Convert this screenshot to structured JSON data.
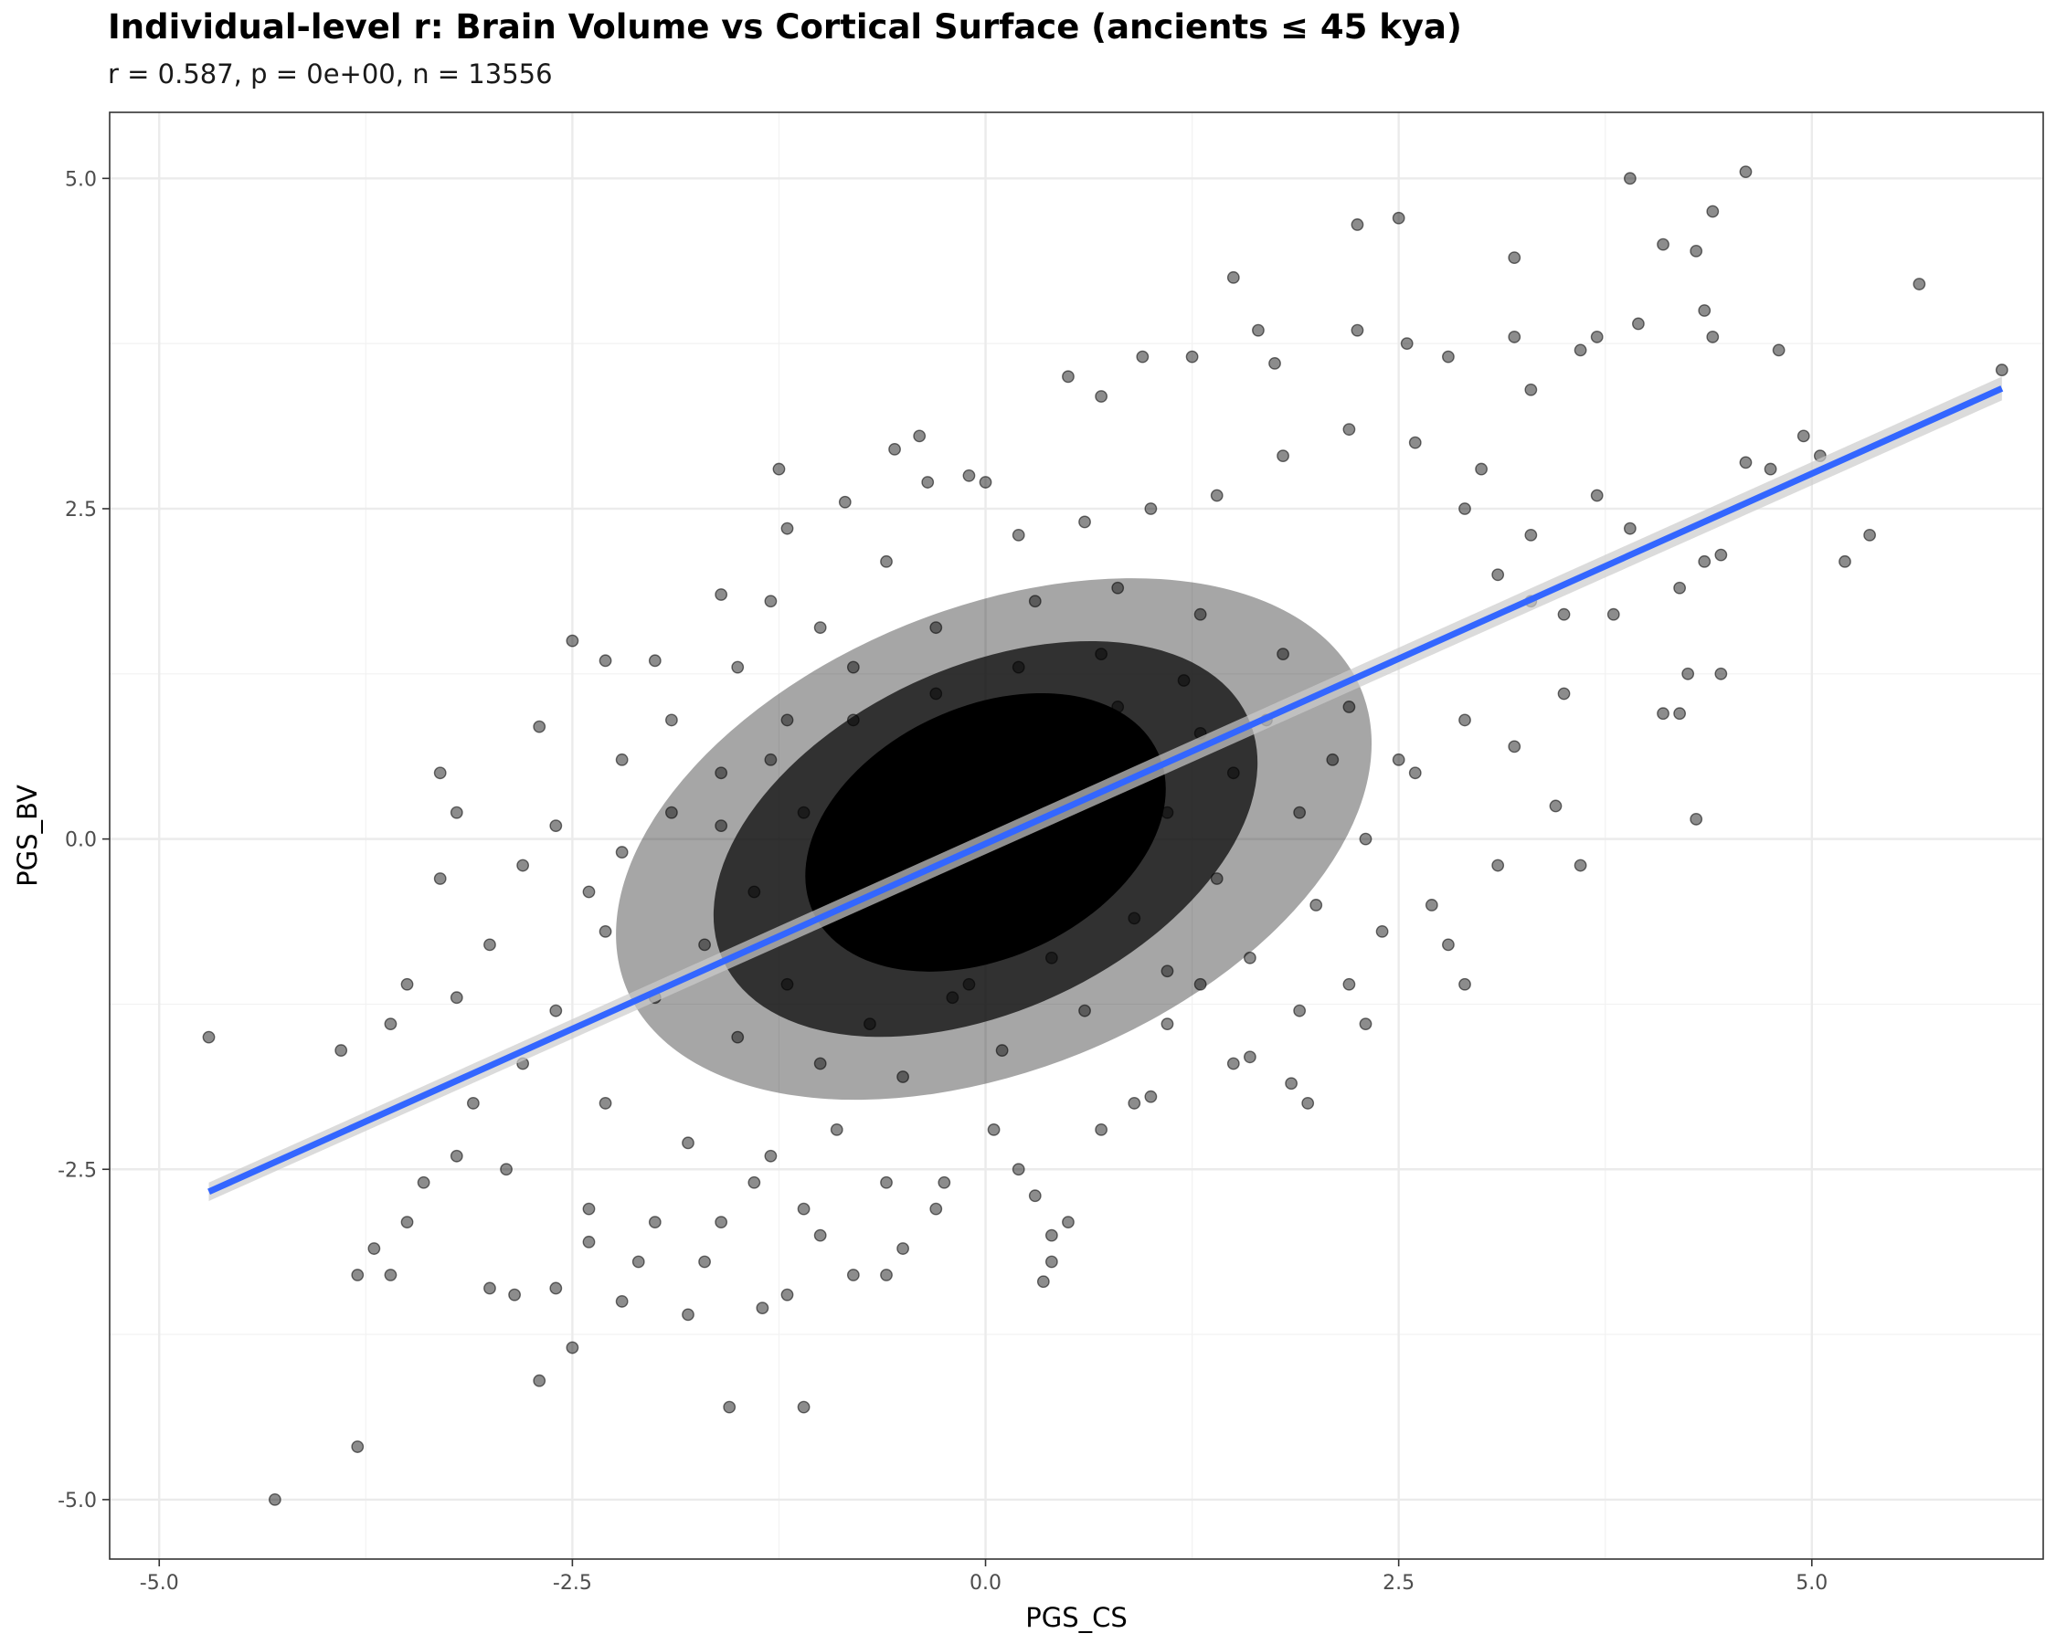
{
  "chart_data": {
    "type": "scatter",
    "title": "Individual-level r: Brain Volume vs Cortical Surface (ancients ≤ 45 kya)",
    "subtitle": "r = 0.587, p = 0e+00, n = 13556",
    "xlabel": "PGS_CS",
    "ylabel": "PGS_BV",
    "xlim": [
      -5.3,
      6.4
    ],
    "ylim": [
      -5.45,
      5.5
    ],
    "xticks": [
      -5.0,
      -2.5,
      0.0,
      2.5,
      5.0
    ],
    "yticks": [
      -5.0,
      -2.5,
      0.0,
      2.5,
      5.0
    ],
    "xtick_labels": [
      "-5.0",
      "-2.5",
      "0.0",
      "2.5",
      "5.0"
    ],
    "ytick_labels": [
      "-5.0",
      "-2.5",
      "0.0",
      "2.5",
      "5.0"
    ],
    "grid": true,
    "stats": {
      "r": 0.587,
      "p": 0,
      "n": 13556
    },
    "point_color": "#000000",
    "point_alpha": 0.45,
    "line_color": "#3366ff",
    "band_color": "#cccccc",
    "fit_line": {
      "x": [
        -4.7,
        6.15
      ],
      "y": [
        -2.67,
        3.41
      ]
    },
    "points": [
      [
        -4.7,
        -1.5
      ],
      [
        -4.3,
        -5.0
      ],
      [
        -3.8,
        -4.6
      ],
      [
        -3.9,
        -1.6
      ],
      [
        -3.7,
        -3.1
      ],
      [
        -3.6,
        -3.3
      ],
      [
        -3.8,
        -3.3
      ],
      [
        -3.5,
        -1.1
      ],
      [
        -3.3,
        -0.3
      ],
      [
        -3.2,
        0.2
      ],
      [
        -3.3,
        0.5
      ],
      [
        -3.4,
        -2.6
      ],
      [
        -3.5,
        -2.9
      ],
      [
        -3.6,
        -1.4
      ],
      [
        -3.1,
        -2.0
      ],
      [
        -3.0,
        -3.4
      ],
      [
        -2.7,
        -4.1
      ],
      [
        -2.7,
        0.85
      ],
      [
        -2.6,
        -3.4
      ],
      [
        -2.5,
        -3.85
      ],
      [
        -2.5,
        1.5
      ],
      [
        -2.3,
        1.35
      ],
      [
        -2.0,
        1.35
      ],
      [
        -1.6,
        1.85
      ],
      [
        -1.3,
        1.8
      ],
      [
        -1.25,
        2.8
      ],
      [
        -1.2,
        2.35
      ],
      [
        -0.85,
        2.55
      ],
      [
        -0.55,
        2.95
      ],
      [
        -0.4,
        3.05
      ],
      [
        -0.35,
        2.7
      ],
      [
        -0.1,
        2.75
      ],
      [
        0.0,
        2.7
      ],
      [
        0.5,
        3.5
      ],
      [
        0.7,
        3.35
      ],
      [
        0.95,
        3.65
      ],
      [
        1.25,
        3.65
      ],
      [
        1.5,
        4.25
      ],
      [
        1.65,
        3.85
      ],
      [
        1.75,
        3.6
      ],
      [
        2.25,
        4.65
      ],
      [
        2.5,
        4.7
      ],
      [
        2.25,
        3.85
      ],
      [
        2.55,
        3.75
      ],
      [
        2.8,
        3.65
      ],
      [
        3.2,
        4.4
      ],
      [
        3.2,
        3.8
      ],
      [
        3.3,
        3.4
      ],
      [
        3.6,
        3.7
      ],
      [
        3.7,
        3.8
      ],
      [
        3.9,
        5.0
      ],
      [
        3.95,
        3.9
      ],
      [
        4.1,
        4.5
      ],
      [
        4.3,
        4.45
      ],
      [
        4.35,
        4.0
      ],
      [
        4.4,
        4.75
      ],
      [
        4.4,
        3.8
      ],
      [
        4.6,
        5.05
      ],
      [
        4.8,
        3.7
      ],
      [
        5.65,
        4.2
      ],
      [
        6.15,
        3.55
      ],
      [
        4.95,
        3.05
      ],
      [
        5.05,
        2.9
      ],
      [
        4.6,
        2.85
      ],
      [
        4.75,
        2.8
      ],
      [
        5.2,
        2.1
      ],
      [
        5.35,
        2.3
      ],
      [
        4.2,
        1.9
      ],
      [
        4.45,
        2.15
      ],
      [
        4.35,
        2.1
      ],
      [
        4.45,
        1.25
      ],
      [
        4.25,
        1.25
      ],
      [
        4.1,
        0.95
      ],
      [
        4.2,
        0.95
      ],
      [
        4.3,
        0.15
      ],
      [
        3.6,
        -0.2
      ],
      [
        3.45,
        0.25
      ],
      [
        2.9,
        -1.1
      ],
      [
        1.95,
        -2.0
      ],
      [
        1.85,
        -1.85
      ],
      [
        1.6,
        -1.65
      ],
      [
        1.0,
        -1.95
      ],
      [
        0.5,
        -2.9
      ],
      [
        0.4,
        -3.0
      ],
      [
        0.4,
        -3.2
      ],
      [
        0.35,
        -3.35
      ],
      [
        -0.8,
        -3.3
      ],
      [
        -0.6,
        -3.3
      ],
      [
        -1.1,
        -4.3
      ],
      [
        -1.55,
        -4.3
      ],
      [
        -1.2,
        -3.45
      ],
      [
        -1.35,
        -3.55
      ],
      [
        -1.8,
        -3.6
      ],
      [
        -2.2,
        -3.5
      ],
      [
        -2.4,
        -3.05
      ],
      [
        -2.85,
        -3.45
      ],
      [
        -0.1,
        -1.1
      ],
      [
        0.05,
        -2.2
      ],
      [
        1.3,
        -1.1
      ],
      [
        -0.25,
        -2.6
      ],
      [
        3.0,
        2.8
      ],
      [
        3.1,
        2.0
      ],
      [
        3.3,
        1.8
      ],
      [
        3.5,
        1.7
      ],
      [
        3.7,
        2.6
      ],
      [
        3.8,
        1.7
      ],
      [
        3.9,
        2.35
      ],
      [
        2.9,
        0.9
      ],
      [
        3.2,
        0.7
      ],
      [
        2.6,
        0.5
      ],
      [
        2.7,
        -0.5
      ],
      [
        2.4,
        -0.7
      ],
      [
        2.2,
        -1.1
      ],
      [
        -2.4,
        -2.8
      ],
      [
        -2.0,
        -2.9
      ],
      [
        -1.7,
        -3.2
      ],
      [
        -1.4,
        -2.6
      ],
      [
        -1.0,
        -3.0
      ],
      [
        -0.6,
        -2.6
      ],
      [
        -3.0,
        -0.8
      ],
      [
        -2.8,
        -0.2
      ],
      [
        -2.6,
        0.1
      ],
      [
        -2.2,
        0.6
      ],
      [
        -1.9,
        0.9
      ],
      [
        -1.5,
        1.3
      ],
      [
        -1.0,
        1.6
      ],
      [
        -0.6,
        2.1
      ],
      [
        0.2,
        2.3
      ],
      [
        0.6,
        2.4
      ],
      [
        1.0,
        2.5
      ],
      [
        1.4,
        2.6
      ],
      [
        1.8,
        2.9
      ],
      [
        2.2,
        3.1
      ],
      [
        2.6,
        3.0
      ],
      [
        2.9,
        2.5
      ],
      [
        3.3,
        2.3
      ],
      [
        3.5,
        1.1
      ],
      [
        3.1,
        -0.2
      ],
      [
        2.8,
        -0.8
      ],
      [
        2.3,
        -1.4
      ],
      [
        1.9,
        -1.3
      ],
      [
        1.5,
        -1.7
      ],
      [
        1.1,
        -1.4
      ],
      [
        0.7,
        -2.2
      ],
      [
        0.2,
        -2.5
      ],
      [
        -0.3,
        -2.8
      ],
      [
        -0.9,
        -2.2
      ],
      [
        -1.3,
        -2.4
      ],
      [
        -1.8,
        -2.3
      ],
      [
        -2.3,
        -2.0
      ],
      [
        -2.8,
        -1.7
      ],
      [
        -3.2,
        -1.2
      ],
      [
        -3.2,
        -2.4
      ],
      [
        -2.9,
        -2.5
      ],
      [
        -2.1,
        -3.2
      ],
      [
        -1.6,
        -2.9
      ],
      [
        -1.1,
        -2.8
      ],
      [
        -0.5,
        -3.1
      ],
      [
        0.3,
        -2.7
      ],
      [
        0.9,
        -2.0
      ],
      [
        -1.6,
        0.5
      ],
      [
        -1.2,
        0.9
      ],
      [
        -0.8,
        1.3
      ],
      [
        -0.3,
        1.6
      ],
      [
        0.3,
        1.8
      ],
      [
        0.8,
        1.9
      ],
      [
        1.3,
        1.7
      ],
      [
        1.8,
        1.4
      ],
      [
        2.2,
        1.0
      ],
      [
        2.5,
        0.6
      ],
      [
        2.3,
        0.0
      ],
      [
        2.0,
        -0.5
      ],
      [
        1.6,
        -0.9
      ],
      [
        1.1,
        -1.0
      ],
      [
        0.6,
        -1.3
      ],
      [
        0.1,
        -1.6
      ],
      [
        -0.5,
        -1.8
      ],
      [
        -1.0,
        -1.7
      ],
      [
        -1.5,
        -1.5
      ],
      [
        -2.0,
        -1.2
      ],
      [
        -2.3,
        -0.7
      ],
      [
        -2.2,
        -0.1
      ],
      [
        -1.9,
        0.2
      ],
      [
        -2.6,
        -1.3
      ],
      [
        -2.4,
        -0.4
      ],
      [
        -1.7,
        -0.8
      ],
      [
        -1.2,
        -1.1
      ],
      [
        -0.7,
        -1.4
      ],
      [
        -0.2,
        -1.2
      ],
      [
        0.4,
        -0.9
      ],
      [
        0.9,
        -0.6
      ],
      [
        1.4,
        -0.3
      ],
      [
        1.9,
        0.2
      ],
      [
        2.1,
        0.6
      ],
      [
        1.7,
        0.9
      ],
      [
        1.2,
        1.2
      ],
      [
        0.7,
        1.4
      ],
      [
        0.2,
        1.3
      ],
      [
        -0.3,
        1.1
      ],
      [
        -0.8,
        0.9
      ],
      [
        -1.3,
        0.6
      ],
      [
        -1.6,
        0.1
      ],
      [
        -1.4,
        -0.4
      ],
      [
        -0.9,
        -0.7
      ],
      [
        -0.4,
        -0.8
      ],
      [
        0.1,
        -0.5
      ],
      [
        0.6,
        -0.2
      ],
      [
        1.1,
        0.2
      ],
      [
        1.5,
        0.5
      ],
      [
        1.3,
        0.8
      ],
      [
        0.8,
        1.0
      ],
      [
        0.3,
        0.9
      ],
      [
        -0.2,
        0.7
      ],
      [
        -0.7,
        0.5
      ],
      [
        -1.1,
        0.2
      ],
      [
        -1.0,
        -0.3
      ],
      [
        -0.5,
        -0.4
      ],
      [
        0.0,
        -0.2
      ],
      [
        0.5,
        0.1
      ],
      [
        1.0,
        0.4
      ],
      [
        0.6,
        0.6
      ],
      [
        0.1,
        0.5
      ],
      [
        -0.4,
        0.3
      ],
      [
        -0.6,
        0.0
      ],
      [
        -0.1,
        0.1
      ],
      [
        0.3,
        0.2
      ]
    ]
  }
}
